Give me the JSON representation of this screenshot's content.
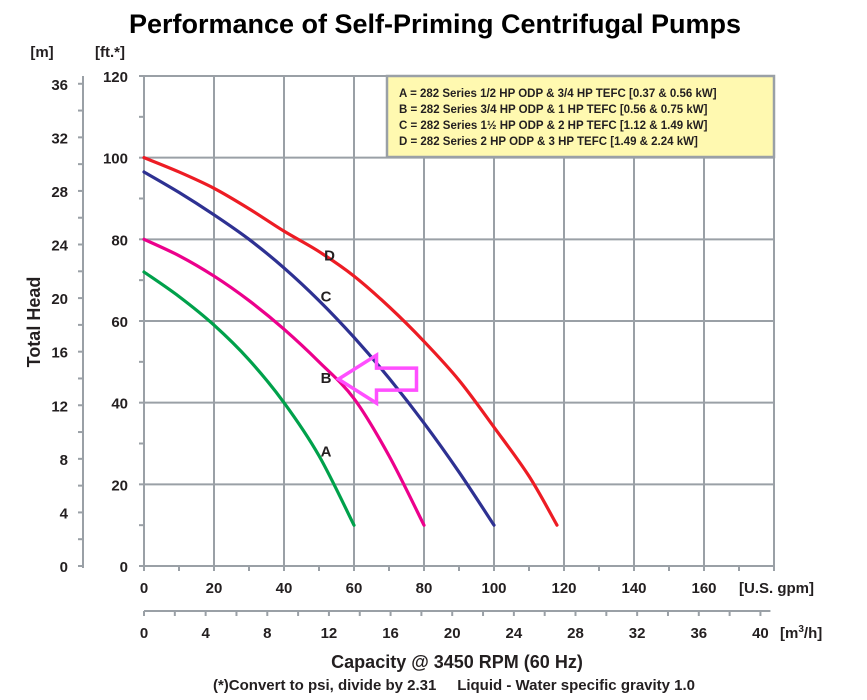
{
  "chart_data": {
    "type": "line",
    "title": "Performance of Self-Priming Centrifugal Pumps",
    "xlabel": "Capacity @ 3450 RPM (60 Hz)",
    "ylabel": "Total Head",
    "footnote": "(*)Convert to psi, divide by 2.31     Liquid - Water specific gravity 1.0",
    "x_axis_primary": {
      "unit": "[U.S. gpm]",
      "range": [
        0,
        180
      ],
      "ticks": [
        0,
        20,
        40,
        60,
        80,
        100,
        120,
        140,
        160
      ],
      "tick_labels": [
        "0",
        "20",
        "40",
        "60",
        "80",
        "100",
        "120",
        "140",
        "160"
      ],
      "minor_step": 10
    },
    "x_axis_secondary": {
      "unit_base": "[m",
      "unit_sup": "3",
      "unit_tail": "/h]",
      "range": [
        0,
        40.88
      ],
      "ticks": [
        0,
        4,
        8,
        12,
        16,
        20,
        24,
        28,
        32,
        36,
        40
      ],
      "tick_labels": [
        "0",
        "4",
        "8",
        "12",
        "16",
        "20",
        "24",
        "28",
        "32",
        "36",
        "40"
      ],
      "minor_step": 2
    },
    "y_axis_feet": {
      "unit": "[ft.*]",
      "range": [
        0,
        120
      ],
      "ticks": [
        0,
        20,
        40,
        60,
        80,
        100,
        120
      ],
      "tick_labels": [
        "0",
        "20",
        "40",
        "60",
        "80",
        "100",
        "120"
      ],
      "minor_step": 10
    },
    "y_axis_meters": {
      "unit": "[m]",
      "range": [
        0,
        36.58
      ],
      "ticks": [
        0,
        4,
        8,
        12,
        16,
        20,
        24,
        28,
        32,
        36
      ],
      "tick_labels": [
        "0",
        "4",
        "8",
        "12",
        "16",
        "20",
        "24",
        "28",
        "32",
        "36"
      ],
      "minor_step": 2
    },
    "grid": true,
    "legend_position": "top-right",
    "legend": [
      "A = 282 Series 1/2 HP ODP & 3/4 HP TEFC [0.37 & 0.56 kW]",
      "B = 282 Series 3/4 HP ODP & 1 HP TEFC [0.56 & 0.75 kW]",
      "C = 282 Series 1½ HP ODP & 2 HP TEFC [1.12 & 1.49 kW]",
      "D = 282 Series 2 HP ODP & 3 HP TEFC [1.49 & 2.24 kW]"
    ],
    "series": [
      {
        "name": "A",
        "color": "#00a14b",
        "label_at": [
          52,
          28
        ],
        "x": [
          0,
          10,
          20,
          30,
          40,
          50,
          60
        ],
        "y": [
          72,
          66,
          59,
          50.5,
          40,
          27,
          10
        ]
      },
      {
        "name": "B",
        "color": "#ec008c",
        "label_at": [
          52,
          46
        ],
        "x": [
          0,
          10,
          20,
          30,
          40,
          50,
          60,
          70,
          80
        ],
        "y": [
          80,
          76,
          71,
          65,
          58,
          50,
          41,
          27,
          10
        ]
      },
      {
        "name": "C",
        "color": "#2e3192",
        "label_at": [
          52,
          66
        ],
        "x": [
          0,
          10,
          20,
          30,
          40,
          50,
          60,
          70,
          80,
          90,
          100
        ],
        "y": [
          96.5,
          91.5,
          86,
          80,
          73,
          65,
          56,
          46,
          35,
          23,
          10
        ]
      },
      {
        "name": "D",
        "color": "#ed1c24",
        "label_at": [
          53,
          76
        ],
        "x": [
          0,
          10,
          20,
          30,
          40,
          50,
          60,
          70,
          80,
          90,
          100,
          110,
          118
        ],
        "y": [
          100,
          96.5,
          92.5,
          87.5,
          82,
          77,
          71,
          63.5,
          55,
          45.5,
          34,
          22,
          10
        ]
      }
    ],
    "annotations": [
      {
        "type": "arrow",
        "color": "#ff4fff",
        "points_to": "B",
        "tip": [
          55,
          46
        ],
        "direction": "left"
      }
    ]
  }
}
